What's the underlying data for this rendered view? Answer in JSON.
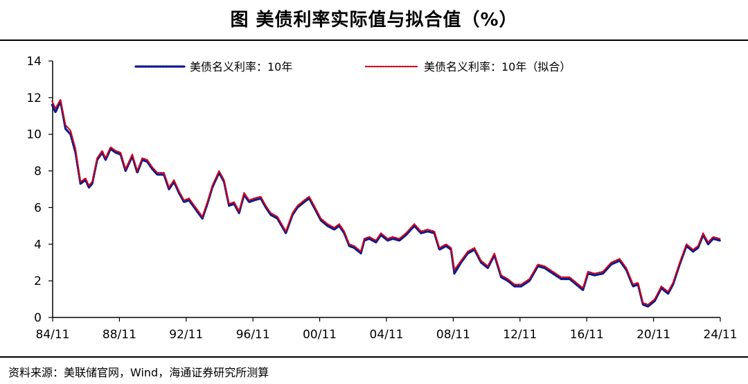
{
  "title": "图  美债利率实际值与拟合值（%）",
  "source": "资料来源：美联储官网，Wind，海通证券研究所测算",
  "chart_data": {
    "type": "line",
    "title": "图  美债利率实际值与拟合值（%）",
    "xlabel": "",
    "ylabel": "",
    "ylim": [
      0,
      14
    ],
    "yticks": [
      "0",
      "2",
      "4",
      "6",
      "8",
      "10",
      "12",
      "14"
    ],
    "xticks": [
      "84/11",
      "88/11",
      "92/11",
      "96/11",
      "00/11",
      "04/11",
      "08/11",
      "12/11",
      "16/11",
      "20/11",
      "24/11"
    ],
    "xlim": [
      1984.83,
      2024.83
    ],
    "grid": false,
    "legend_position": "top",
    "colors": {
      "actual": "#0a1a8c",
      "fitted": "#d0021b"
    },
    "series": [
      {
        "name": "美债名义利率：10年",
        "style": "dotted",
        "x": [
          1984.8,
          1985.0,
          1985.3,
          1985.6,
          1985.9,
          1986.2,
          1986.5,
          1986.8,
          1987.0,
          1987.2,
          1987.5,
          1987.8,
          1988.0,
          1988.3,
          1988.6,
          1988.9,
          1989.2,
          1989.6,
          1989.9,
          1990.2,
          1990.5,
          1990.8,
          1991.1,
          1991.5,
          1991.8,
          1992.1,
          1992.4,
          1992.7,
          1993.0,
          1993.4,
          1993.8,
          1994.1,
          1994.4,
          1994.8,
          1995.1,
          1995.4,
          1995.7,
          1996.0,
          1996.3,
          1996.6,
          1996.9,
          1997.3,
          1997.6,
          1997.9,
          1998.3,
          1998.8,
          1999.2,
          1999.5,
          1999.9,
          2000.2,
          2000.5,
          2000.9,
          2001.3,
          2001.7,
          2002.0,
          2002.3,
          2002.6,
          2002.9,
          2003.3,
          2003.5,
          2003.8,
          2004.2,
          2004.5,
          2004.9,
          2005.2,
          2005.6,
          2006.0,
          2006.5,
          2006.9,
          2007.3,
          2007.7,
          2008.0,
          2008.4,
          2008.7,
          2008.9,
          2009.3,
          2009.7,
          2010.1,
          2010.5,
          2010.9,
          2011.3,
          2011.7,
          2012.1,
          2012.5,
          2012.9,
          2013.4,
          2013.9,
          2014.3,
          2014.8,
          2015.3,
          2015.8,
          2016.2,
          2016.6,
          2016.9,
          2017.3,
          2017.8,
          2018.3,
          2018.8,
          2019.2,
          2019.6,
          2019.9,
          2020.2,
          2020.5,
          2020.9,
          2021.3,
          2021.7,
          2022.0,
          2022.4,
          2022.8,
          2023.2,
          2023.5,
          2023.8,
          2024.1,
          2024.4,
          2024.8
        ],
        "values": [
          11.6,
          11.2,
          11.8,
          10.3,
          10.0,
          9.0,
          7.3,
          7.5,
          7.1,
          7.3,
          8.6,
          9.0,
          8.6,
          9.2,
          9.0,
          8.9,
          8.0,
          8.8,
          7.9,
          8.6,
          8.5,
          8.1,
          7.8,
          7.8,
          7.0,
          7.4,
          6.8,
          6.3,
          6.4,
          5.9,
          5.4,
          6.2,
          7.1,
          7.9,
          7.4,
          6.1,
          6.2,
          5.7,
          6.7,
          6.3,
          6.4,
          6.5,
          6.0,
          5.6,
          5.4,
          4.6,
          5.6,
          6.0,
          6.3,
          6.5,
          6.0,
          5.3,
          5.0,
          4.8,
          5.0,
          4.6,
          3.9,
          3.8,
          3.5,
          4.2,
          4.3,
          4.1,
          4.5,
          4.2,
          4.3,
          4.2,
          4.5,
          5.0,
          4.6,
          4.7,
          4.6,
          3.7,
          3.9,
          3.7,
          2.4,
          3.0,
          3.5,
          3.7,
          3.0,
          2.7,
          3.4,
          2.2,
          2.0,
          1.7,
          1.7,
          2.0,
          2.8,
          2.7,
          2.4,
          2.1,
          2.1,
          1.8,
          1.5,
          2.4,
          2.3,
          2.4,
          2.9,
          3.1,
          2.6,
          1.7,
          1.8,
          0.7,
          0.6,
          0.9,
          1.6,
          1.3,
          1.8,
          2.9,
          3.9,
          3.6,
          3.8,
          4.5,
          4.0,
          4.3,
          4.2
        ]
      },
      {
        "name": "美债名义利率：10年（拟合）",
        "style": "dotted",
        "x": [
          1984.8,
          1985.0,
          1985.3,
          1985.6,
          1985.9,
          1986.2,
          1986.5,
          1986.8,
          1987.0,
          1987.2,
          1987.5,
          1987.8,
          1988.0,
          1988.3,
          1988.6,
          1988.9,
          1989.2,
          1989.6,
          1989.9,
          1990.2,
          1990.5,
          1990.8,
          1991.1,
          1991.5,
          1991.8,
          1992.1,
          1992.4,
          1992.7,
          1993.0,
          1993.4,
          1993.8,
          1994.1,
          1994.4,
          1994.8,
          1995.1,
          1995.4,
          1995.7,
          1996.0,
          1996.3,
          1996.6,
          1996.9,
          1997.3,
          1997.6,
          1997.9,
          1998.3,
          1998.8,
          1999.2,
          1999.5,
          1999.9,
          2000.2,
          2000.5,
          2000.9,
          2001.3,
          2001.7,
          2002.0,
          2002.3,
          2002.6,
          2002.9,
          2003.3,
          2003.5,
          2003.8,
          2004.2,
          2004.5,
          2004.9,
          2005.2,
          2005.6,
          2006.0,
          2006.5,
          2006.9,
          2007.3,
          2007.7,
          2008.0,
          2008.4,
          2008.7,
          2008.9,
          2009.3,
          2009.7,
          2010.1,
          2010.5,
          2010.9,
          2011.3,
          2011.7,
          2012.1,
          2012.5,
          2012.9,
          2013.4,
          2013.9,
          2014.3,
          2014.8,
          2015.3,
          2015.8,
          2016.2,
          2016.6,
          2016.9,
          2017.3,
          2017.8,
          2018.3,
          2018.8,
          2019.2,
          2019.6,
          2019.9,
          2020.2,
          2020.5,
          2020.9,
          2021.3,
          2021.7,
          2022.0,
          2022.4,
          2022.8,
          2023.2,
          2023.5,
          2023.8,
          2024.1,
          2024.4,
          2024.8
        ],
        "values": [
          11.8,
          11.4,
          11.9,
          10.5,
          10.2,
          9.2,
          7.4,
          7.6,
          7.2,
          7.4,
          8.7,
          9.1,
          8.7,
          9.3,
          9.1,
          9.0,
          8.1,
          8.9,
          8.0,
          8.7,
          8.6,
          8.2,
          7.9,
          7.9,
          7.1,
          7.5,
          6.9,
          6.4,
          6.5,
          6.0,
          5.5,
          6.3,
          7.2,
          8.0,
          7.5,
          6.2,
          6.3,
          5.8,
          6.8,
          6.4,
          6.5,
          6.6,
          6.1,
          5.7,
          5.5,
          4.7,
          5.7,
          6.1,
          6.4,
          6.6,
          6.1,
          5.4,
          5.1,
          4.9,
          5.1,
          4.7,
          4.0,
          3.9,
          3.6,
          4.3,
          4.4,
          4.2,
          4.6,
          4.3,
          4.4,
          4.3,
          4.6,
          5.1,
          4.7,
          4.8,
          4.7,
          3.8,
          4.0,
          3.8,
          2.6,
          3.1,
          3.6,
          3.8,
          3.1,
          2.8,
          3.5,
          2.3,
          2.1,
          1.8,
          1.8,
          2.1,
          2.9,
          2.8,
          2.5,
          2.2,
          2.2,
          1.9,
          1.6,
          2.5,
          2.4,
          2.5,
          3.0,
          3.2,
          2.7,
          1.8,
          1.9,
          0.8,
          0.7,
          1.0,
          1.7,
          1.4,
          1.9,
          3.0,
          4.0,
          3.7,
          3.9,
          4.6,
          4.1,
          4.4,
          4.3
        ]
      }
    ]
  }
}
